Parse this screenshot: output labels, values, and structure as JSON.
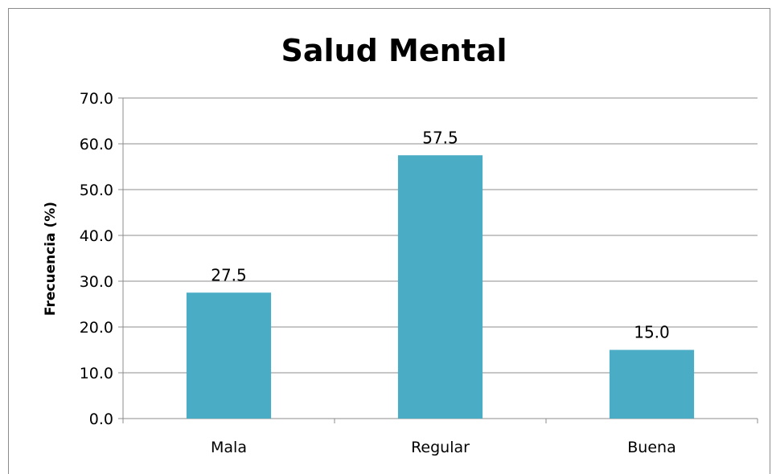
{
  "chart_data": {
    "type": "bar",
    "title": "Salud Mental",
    "ylabel": "Frecuencia (%)",
    "xlabel": "",
    "categories": [
      "Mala",
      "Regular",
      "Buena"
    ],
    "values": [
      27.5,
      57.5,
      15.0
    ],
    "data_labels": [
      "27.5",
      "57.5",
      "15.0"
    ],
    "ylim": [
      0,
      70
    ],
    "yticks": [
      0,
      10,
      20,
      30,
      40,
      50,
      60,
      70
    ],
    "ytick_labels": [
      "0.0",
      "10.0",
      "20.0",
      "30.0",
      "40.0",
      "50.0",
      "60.0",
      "70.0"
    ],
    "grid": true,
    "legend": "none",
    "bar_color": "#4bacc6"
  }
}
